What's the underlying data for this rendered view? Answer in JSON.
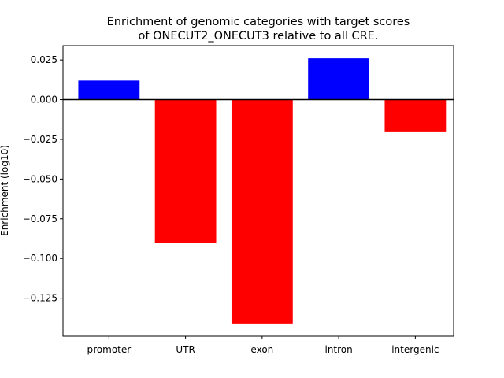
{
  "chart_data": {
    "type": "bar",
    "title_line1": "Enrichment of genomic categories with target scores",
    "title_line2": "of ONECUT2_ONECUT3 relative to all CRE.",
    "xlabel": "",
    "ylabel": "Enrichment (log10)",
    "categories": [
      "promoter",
      "UTR",
      "exon",
      "intron",
      "intergenic"
    ],
    "values": [
      0.012,
      -0.09,
      -0.141,
      0.026,
      -0.02
    ],
    "ylim": [
      -0.149,
      0.034
    ],
    "yticks": [
      0.025,
      0.0,
      -0.025,
      -0.05,
      -0.075,
      -0.1,
      -0.125
    ],
    "ytick_labels": [
      "0.025",
      "0.000",
      "−0.025",
      "−0.050",
      "−0.075",
      "−0.100",
      "−0.125"
    ],
    "colors": {
      "positive": "#0000ff",
      "negative": "#ff0000"
    },
    "grid": false,
    "legend": "none"
  }
}
